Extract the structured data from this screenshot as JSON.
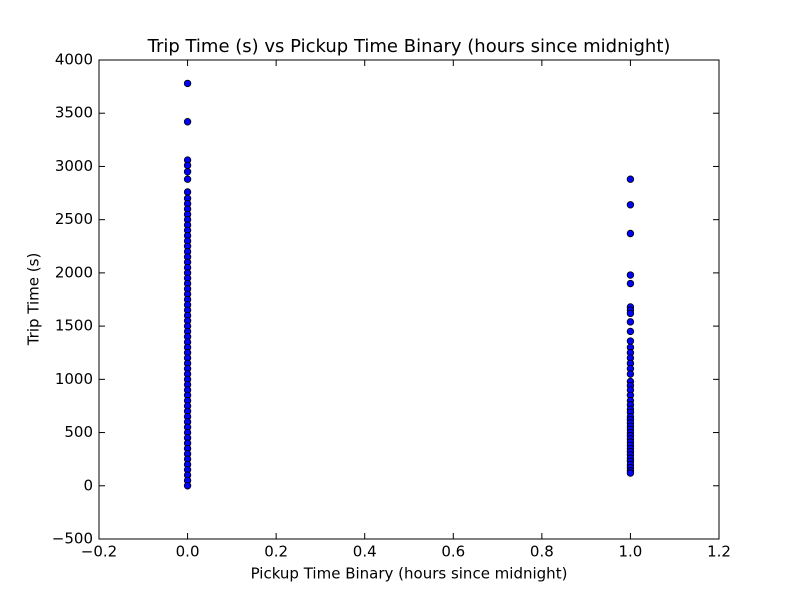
{
  "chart_data": {
    "type": "scatter",
    "title": "Trip Time (s) vs Pickup Time Binary (hours since midnight)",
    "x_label": "Pickup Time Binary (hours since midnight)",
    "y_label": "Trip Time (s)",
    "color": "#0000ff",
    "edge_color": "#000000",
    "xlim": [
      -0.2,
      1.2
    ],
    "ylim": [
      -500,
      4000
    ],
    "xticks": [
      {
        "value": -0.2,
        "label": "−0.2"
      },
      {
        "value": 0,
        "label": "0.0"
      },
      {
        "value": 0.2,
        "label": "0.2"
      },
      {
        "value": 0.4,
        "label": "0.4"
      },
      {
        "value": 0.6,
        "label": "0.6"
      },
      {
        "value": 0.8,
        "label": "0.8"
      },
      {
        "value": 1,
        "label": "1.0"
      },
      {
        "value": 1.2,
        "label": "1.2"
      }
    ],
    "yticks": [
      {
        "value": -500,
        "label": "−500"
      },
      0,
      500,
      1000,
      1500,
      2000,
      2500,
      3000,
      3500,
      4000
    ],
    "x": [
      0,
      0,
      0,
      0,
      0,
      0,
      0,
      0,
      0,
      0,
      0,
      0,
      0,
      0,
      0,
      0,
      0,
      0,
      0,
      0,
      0,
      0,
      0,
      0,
      0,
      0,
      0,
      0,
      0,
      0,
      0,
      0,
      0,
      0,
      0,
      0,
      0,
      0,
      0,
      0,
      0,
      0,
      0,
      0,
      0,
      0,
      0,
      0,
      0,
      0,
      0,
      0,
      0,
      0,
      0,
      0,
      0,
      0,
      0,
      0,
      0,
      0,
      1,
      1,
      1,
      1,
      1,
      1,
      1,
      1,
      1,
      1,
      1,
      1,
      1,
      1,
      1,
      1,
      1,
      1,
      1,
      1,
      1,
      1,
      1,
      1,
      1,
      1,
      1,
      1,
      1,
      1,
      1,
      1,
      1,
      1,
      1,
      1,
      1,
      1,
      1,
      1,
      1,
      1,
      1,
      1
    ],
    "y": [
      3780,
      3420,
      3060,
      3010,
      2950,
      2880,
      2760,
      2700,
      2650,
      2600,
      2550,
      2500,
      2450,
      2400,
      2350,
      2300,
      2250,
      2200,
      2150,
      2100,
      2050,
      2000,
      1950,
      1900,
      1850,
      1800,
      1750,
      1700,
      1650,
      1600,
      1550,
      1500,
      1450,
      1400,
      1350,
      1300,
      1250,
      1200,
      1150,
      1100,
      1050,
      1000,
      950,
      900,
      850,
      800,
      750,
      700,
      650,
      600,
      550,
      500,
      450,
      400,
      350,
      300,
      250,
      200,
      150,
      100,
      50,
      0,
      2880,
      2640,
      2370,
      1980,
      1900,
      1680,
      1650,
      1620,
      1540,
      1450,
      1360,
      1300,
      1250,
      1200,
      1150,
      1100,
      1050,
      980,
      940,
      900,
      850,
      800,
      760,
      720,
      690,
      650,
      620,
      590,
      560,
      530,
      500,
      470,
      440,
      410,
      380,
      350,
      320,
      290,
      260,
      230,
      200,
      170,
      140,
      120
    ]
  }
}
